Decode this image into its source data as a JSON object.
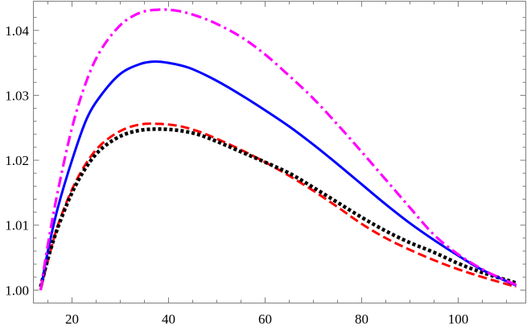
{
  "chart_data": {
    "type": "line",
    "title": "",
    "xlabel": "",
    "ylabel": "",
    "xlim": [
      12,
      114
    ],
    "ylim": [
      0.998,
      1.0445
    ],
    "grid": false,
    "legend": "none",
    "x_ticks": [
      {
        "value": 20,
        "label": "20"
      },
      {
        "value": 40,
        "label": "40"
      },
      {
        "value": 60,
        "label": "60"
      },
      {
        "value": 80,
        "label": "80"
      },
      {
        "value": 100,
        "label": "100"
      }
    ],
    "y_ticks": [
      {
        "value": 1.0,
        "label": "1.00"
      },
      {
        "value": 1.01,
        "label": "1.01"
      },
      {
        "value": 1.02,
        "label": "1.02"
      },
      {
        "value": 1.03,
        "label": "1.03"
      },
      {
        "value": 1.04,
        "label": "1.04"
      }
    ],
    "series": [
      {
        "name": "magenta-dot-dash",
        "color": "#ff00ff",
        "style": "dotdash",
        "points": [
          [
            13.5,
            1.0
          ],
          [
            15,
            1.007
          ],
          [
            17,
            1.015
          ],
          [
            20,
            1.025
          ],
          [
            23,
            1.0322
          ],
          [
            26,
            1.037
          ],
          [
            30,
            1.0408
          ],
          [
            34,
            1.0427
          ],
          [
            38,
            1.0432
          ],
          [
            42,
            1.043
          ],
          [
            46,
            1.0422
          ],
          [
            50,
            1.041
          ],
          [
            55,
            1.039
          ],
          [
            60,
            1.0363
          ],
          [
            65,
            1.033
          ],
          [
            70,
            1.0295
          ],
          [
            75,
            1.0255
          ],
          [
            80,
            1.0213
          ],
          [
            85,
            1.017
          ],
          [
            90,
            1.0127
          ],
          [
            95,
            1.0085
          ],
          [
            100,
            1.0055
          ],
          [
            105,
            1.0032
          ],
          [
            108,
            1.0021
          ],
          [
            112,
            1.0008
          ]
        ]
      },
      {
        "name": "blue-solid",
        "color": "#0000ff",
        "style": "solid",
        "points": [
          [
            13.5,
            1.0
          ],
          [
            15,
            1.006
          ],
          [
            17,
            1.0125
          ],
          [
            20,
            1.02
          ],
          [
            23,
            1.0263
          ],
          [
            26,
            1.03
          ],
          [
            30,
            1.0333
          ],
          [
            34,
            1.0348
          ],
          [
            37,
            1.0352
          ],
          [
            40,
            1.035
          ],
          [
            44,
            1.0343
          ],
          [
            48,
            1.033
          ],
          [
            52,
            1.0314
          ],
          [
            56,
            1.0296
          ],
          [
            60,
            1.0277
          ],
          [
            65,
            1.0252
          ],
          [
            70,
            1.0224
          ],
          [
            75,
            1.0194
          ],
          [
            80,
            1.0163
          ],
          [
            85,
            1.0132
          ],
          [
            90,
            1.0103
          ],
          [
            95,
            1.0077
          ],
          [
            100,
            1.0053
          ],
          [
            105,
            1.0031
          ],
          [
            112,
            1.0007
          ]
        ]
      },
      {
        "name": "red-dashed",
        "color": "#ff0000",
        "style": "dashed",
        "points": [
          [
            13.5,
            1.0
          ],
          [
            15,
            1.0045
          ],
          [
            17,
            1.0098
          ],
          [
            20,
            1.0155
          ],
          [
            23,
            1.0196
          ],
          [
            26,
            1.0224
          ],
          [
            30,
            1.0245
          ],
          [
            34,
            1.0255
          ],
          [
            38,
            1.0256
          ],
          [
            42,
            1.0253
          ],
          [
            46,
            1.0245
          ],
          [
            50,
            1.0233
          ],
          [
            55,
            1.0216
          ],
          [
            60,
            1.0197
          ],
          [
            65,
            1.0176
          ],
          [
            70,
            1.0153
          ],
          [
            75,
            1.0128
          ],
          [
            80,
            1.0102
          ],
          [
            85,
            1.008
          ],
          [
            90,
            1.0062
          ],
          [
            95,
            1.0046
          ],
          [
            100,
            1.0032
          ],
          [
            105,
            1.002
          ],
          [
            112,
            1.0005
          ]
        ]
      },
      {
        "name": "black-dotted",
        "color": "#000000",
        "style": "dotted",
        "points": [
          [
            13.5,
            1.0005
          ],
          [
            15,
            1.0048
          ],
          [
            17,
            1.0095
          ],
          [
            20,
            1.015
          ],
          [
            23,
            1.019
          ],
          [
            26,
            1.0217
          ],
          [
            30,
            1.0237
          ],
          [
            34,
            1.0246
          ],
          [
            38,
            1.0248
          ],
          [
            42,
            1.0246
          ],
          [
            46,
            1.024
          ],
          [
            50,
            1.0229
          ],
          [
            55,
            1.0213
          ],
          [
            60,
            1.0197
          ],
          [
            65,
            1.018
          ],
          [
            70,
            1.0158
          ],
          [
            75,
            1.0135
          ],
          [
            80,
            1.0112
          ],
          [
            85,
            1.0091
          ],
          [
            90,
            1.0073
          ],
          [
            95,
            1.0058
          ],
          [
            100,
            1.0041
          ],
          [
            105,
            1.0027
          ],
          [
            112,
            1.0011
          ]
        ]
      }
    ]
  }
}
